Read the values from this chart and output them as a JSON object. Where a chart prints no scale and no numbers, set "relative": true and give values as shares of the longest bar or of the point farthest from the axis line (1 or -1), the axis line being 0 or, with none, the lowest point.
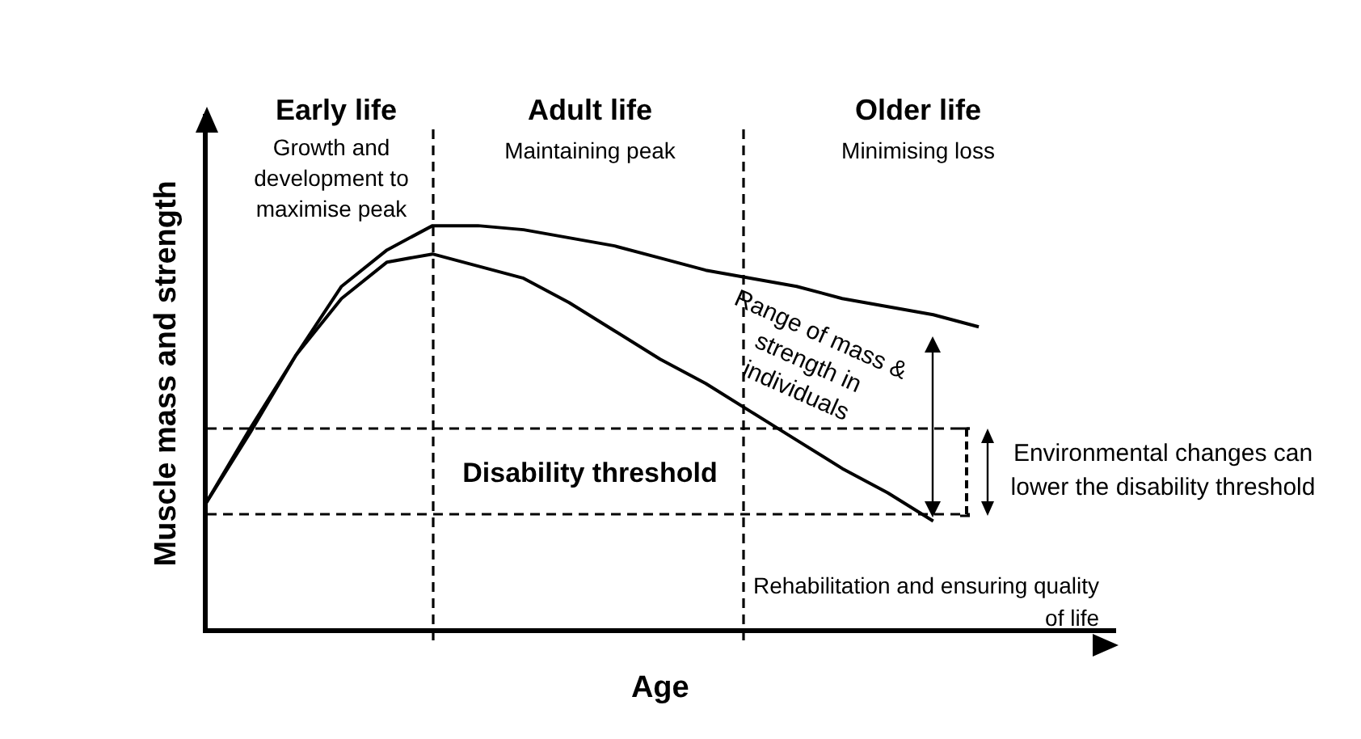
{
  "chart_data": {
    "type": "line",
    "relative": true,
    "xlabel": "Age",
    "ylabel": "Muscle mass and strength",
    "grid": false,
    "categories": [
      null,
      null,
      null,
      null,
      null,
      null,
      null,
      null,
      null,
      null,
      null,
      null,
      null,
      null,
      null,
      null,
      null,
      null,
      null,
      null,
      null
    ],
    "series": [
      {
        "color": "#000000",
        "values": [
          0.31,
          0.5,
          0.68,
          0.85,
          0.94,
          1,
          1,
          0.99,
          0.97,
          0.95,
          0.92,
          0.89,
          0.87,
          0.85,
          0.82,
          0.8,
          0.78,
          0.75,
          null,
          null,
          null
        ]
      },
      {
        "color": "#000000",
        "values": [
          0.31,
          0.49,
          0.68,
          0.82,
          0.91,
          0.93,
          0.9,
          0.87,
          0.81,
          0.74,
          0.67,
          0.61,
          0.54,
          0.47,
          0.4,
          0.34,
          0.27,
          null,
          null,
          null,
          null
        ]
      }
    ],
    "annotations": [
      "Early life",
      "Growth and development to maximise peak",
      "Adult life",
      "Maintaining peak",
      "Older life",
      "Minimising loss",
      "Range of mass & strength in individuals",
      "Disability threshold",
      "Environmental changes can lower the disability threshold",
      "Rehabilitation and ensuring quality of life"
    ]
  }
}
